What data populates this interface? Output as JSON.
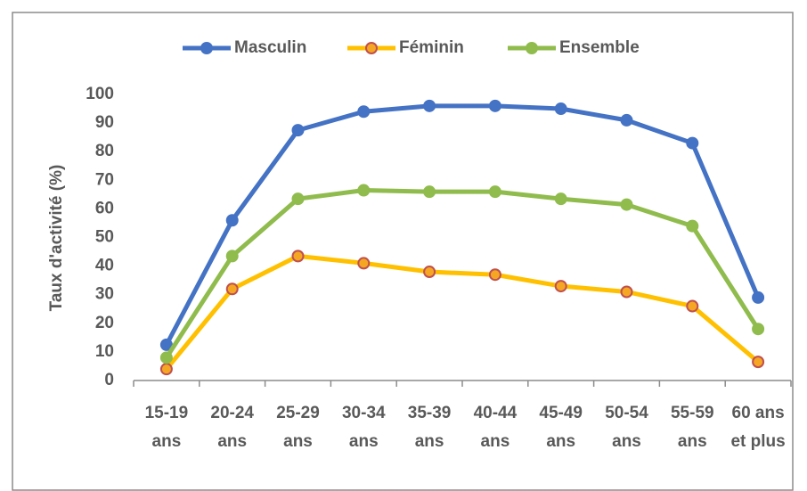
{
  "chart_data": {
    "type": "line",
    "y_label": "Taux d'activité (%)",
    "categories": [
      "15-19 ans",
      "20-24 ans",
      "25-29 ans",
      "30-34 ans",
      "35-39 ans",
      "40-44 ans",
      "45-49 ans",
      "50-54 ans",
      "55-59 ans",
      "60 ans et plus"
    ],
    "series": [
      {
        "name": "Masculin",
        "color": "#4472c4",
        "marker_fill": "#4472c4",
        "marker_edge": "#4472c4",
        "values": [
          12.5,
          56,
          87.5,
          94,
          96,
          96,
          95,
          91,
          83,
          29
        ]
      },
      {
        "name": "Féminin",
        "color": "#ffc000",
        "marker_fill": "#f5a623",
        "marker_edge": "#c0504d",
        "values": [
          4,
          32,
          43.5,
          41,
          38,
          37,
          33,
          31,
          26,
          6.5
        ]
      },
      {
        "name": "Ensemble",
        "color": "#8fbc4c",
        "marker_fill": "#8fbc4c",
        "marker_edge": "#8fbc4c",
        "values": [
          8,
          43.5,
          63.5,
          66.5,
          66,
          66,
          63.5,
          61.5,
          54,
          18
        ]
      }
    ],
    "ylim": [
      0,
      100
    ],
    "yticks": [
      0,
      10,
      20,
      30,
      40,
      50,
      60,
      70,
      80,
      90,
      100
    ],
    "grid": false,
    "legend": "top"
  }
}
